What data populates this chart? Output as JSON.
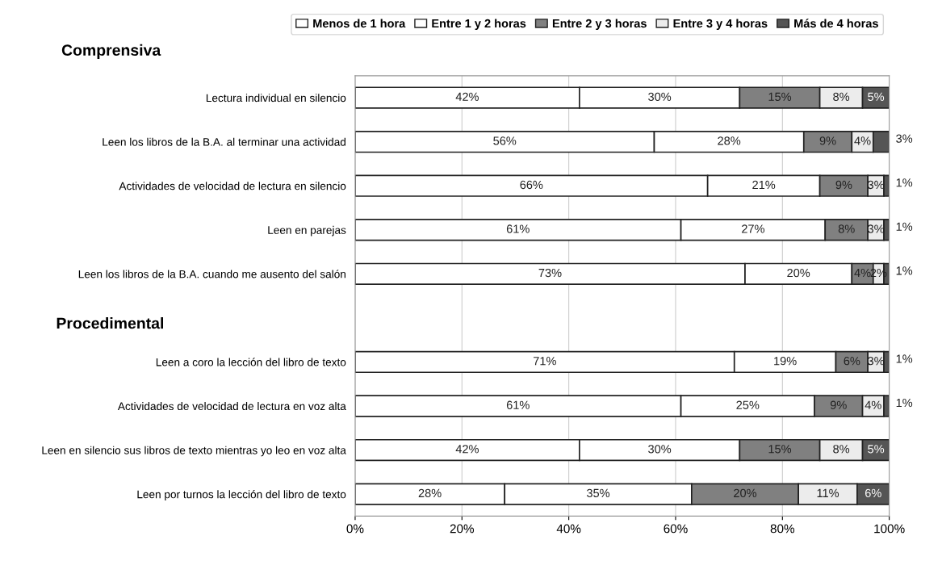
{
  "chart_data": {
    "type": "bar",
    "orientation": "horizontal",
    "stacked": true,
    "grid": "x",
    "legend": "top",
    "categories": [
      "Lectura individual en silencio",
      "Leen los libros de la B.A. al terminar una actividad",
      "Actividades de velocidad de lectura en silencio",
      "Leen en parejas",
      "Leen los libros de la B.A. cuando me ausento del salón",
      null,
      "Leen a coro la lección del libro de texto",
      "Actividades de velocidad de lectura en voz alta",
      "Leen en silencio sus libros de texto mientras yo leo en voz alta",
      "Leen por turnos la lección del libro de texto"
    ],
    "series": [
      {
        "name": "Menos de 1 hora",
        "color": "#ffffff",
        "values": [
          42,
          56,
          66,
          61,
          73,
          null,
          71,
          61,
          42,
          28
        ],
        "value_labels": [
          "42%",
          "56%",
          "66%",
          "61%",
          "73%",
          null,
          "71%",
          "61%",
          "42%",
          "28%"
        ]
      },
      {
        "name": "Entre 1 y 2 horas",
        "color": "#ffffff",
        "values": [
          30,
          28,
          21,
          27,
          20,
          null,
          19,
          25,
          30,
          35
        ],
        "value_labels": [
          "30%",
          "28%",
          "21%",
          "27%",
          "20%",
          null,
          "19%",
          "25%",
          "30%",
          "35%"
        ]
      },
      {
        "name": "Entre 2 y 3 horas",
        "color": "#808080",
        "values": [
          15,
          9,
          9,
          8,
          4,
          null,
          6,
          9,
          15,
          20
        ],
        "value_labels": [
          "15%",
          "9%",
          "9%",
          "8%",
          "4%",
          null,
          "6%",
          "9%",
          "15%",
          "20%"
        ]
      },
      {
        "name": "Entre 3 y 4 horas",
        "color": "#ececec",
        "values": [
          8,
          4,
          3,
          3,
          2,
          null,
          3,
          4,
          8,
          11
        ],
        "value_labels": [
          "8%",
          "4%",
          "3%",
          "3%",
          "2%",
          null,
          "3%",
          "4%",
          "8%",
          "11%"
        ]
      },
      {
        "name": "Más de 4 horas",
        "color": "#555555",
        "values": [
          5,
          3,
          1,
          1,
          1,
          null,
          1,
          1,
          5,
          6
        ],
        "value_labels": [
          "5%",
          "3%",
          "1%",
          "1%",
          "1%",
          null,
          "1%",
          "1%",
          "5%",
          "6%"
        ]
      }
    ],
    "xlim": [
      0,
      100
    ],
    "xticks": [
      {
        "value": 0,
        "label": "0%"
      },
      {
        "value": 20,
        "label": "20%"
      },
      {
        "value": 40,
        "label": "40%"
      },
      {
        "value": 60,
        "label": "60%"
      },
      {
        "value": 80,
        "label": "80%"
      },
      {
        "value": 100,
        "label": "100%"
      }
    ],
    "annotations": [
      "Comprensiva",
      "Procedimental"
    ]
  }
}
